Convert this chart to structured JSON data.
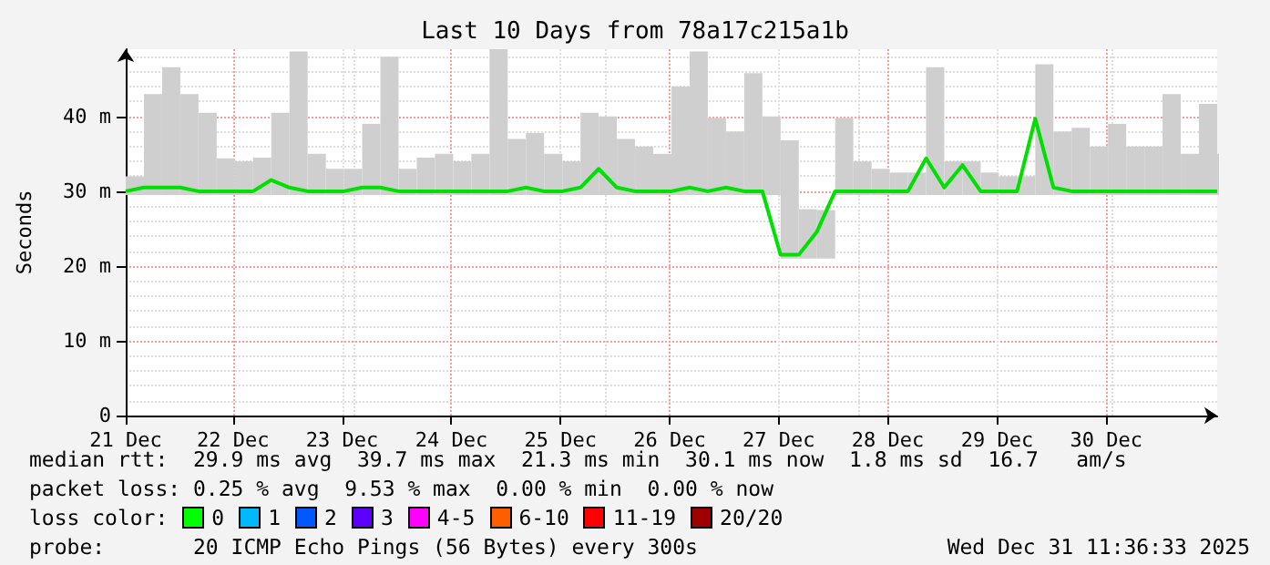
{
  "chart_data": {
    "type": "line",
    "title": "Last 10 Days from 78a17c215a1b",
    "ylabel": "Seconds",
    "x": [
      "2025-12-21T12:24",
      "2025-12-21T16:24",
      "2025-12-21T20:24",
      "2025-12-22T00:24",
      "2025-12-22T04:24",
      "2025-12-22T08:24",
      "2025-12-22T12:24",
      "2025-12-22T16:24",
      "2025-12-22T20:24",
      "2025-12-23T00:24",
      "2025-12-23T04:24",
      "2025-12-23T08:24",
      "2025-12-23T12:24",
      "2025-12-23T16:24",
      "2025-12-23T20:24",
      "2025-12-24T00:24",
      "2025-12-24T04:24",
      "2025-12-24T08:24",
      "2025-12-24T12:24",
      "2025-12-24T16:24",
      "2025-12-24T20:24",
      "2025-12-25T00:24",
      "2025-12-25T04:24",
      "2025-12-25T08:24",
      "2025-12-25T12:24",
      "2025-12-25T16:24",
      "2025-12-25T20:24",
      "2025-12-26T00:24",
      "2025-12-26T04:24",
      "2025-12-26T08:24",
      "2025-12-26T12:24",
      "2025-12-26T16:24",
      "2025-12-26T20:24",
      "2025-12-27T00:24",
      "2025-12-27T04:24",
      "2025-12-27T08:24",
      "2025-12-27T12:24",
      "2025-12-27T16:24",
      "2025-12-27T20:24",
      "2025-12-28T00:24",
      "2025-12-28T04:24",
      "2025-12-28T08:24",
      "2025-12-28T12:24",
      "2025-12-28T16:24",
      "2025-12-28T20:24",
      "2025-12-29T00:24",
      "2025-12-29T04:24",
      "2025-12-29T08:24",
      "2025-12-29T12:24",
      "2025-12-29T16:24",
      "2025-12-29T20:24",
      "2025-12-30T00:24",
      "2025-12-30T04:24",
      "2025-12-30T08:24",
      "2025-12-30T12:24",
      "2025-12-30T16:24",
      "2025-12-30T20:24",
      "2025-12-31T00:24",
      "2025-12-31T04:24",
      "2025-12-31T08:24",
      "2025-12-31T12:24"
    ],
    "series": [
      {
        "color": "#00e000",
        "values": [
          30,
          30.5,
          30.5,
          30.5,
          30,
          30,
          30,
          30,
          31.5,
          30.5,
          30,
          30,
          30,
          30.5,
          30.5,
          30,
          30,
          30,
          30,
          30,
          30,
          30,
          30.5,
          30,
          30,
          30.5,
          33,
          30.5,
          30,
          30,
          30,
          30.5,
          30,
          30.5,
          30,
          30,
          21.5,
          21.5,
          24.6,
          30,
          30,
          30,
          30,
          30,
          34.4,
          30.5,
          33.5,
          30,
          30,
          30,
          39.7,
          30.5,
          30,
          30,
          30,
          30,
          30,
          30,
          30,
          30,
          30
        ],
        "lower": [
          29.5,
          29.5,
          29.5,
          29.5,
          29.5,
          29.5,
          29.5,
          29.5,
          29.5,
          29.5,
          29.5,
          29.5,
          29.5,
          29.5,
          29.5,
          29.5,
          29.5,
          29.5,
          29.5,
          29.5,
          29.5,
          29.5,
          29.5,
          29.5,
          29.5,
          29.5,
          29.5,
          29.5,
          29.5,
          29.5,
          29.5,
          29.5,
          29.5,
          29.5,
          29.5,
          29.5,
          21,
          21,
          21,
          29.5,
          29.5,
          29.5,
          29.5,
          29.5,
          29.5,
          29.5,
          29.5,
          29.5,
          29.5,
          29.5,
          29.5,
          29.5,
          29.5,
          29.5,
          29.5,
          29.5,
          29.5,
          29.5,
          29.5,
          29.5,
          29.5
        ],
        "upper": [
          32,
          43,
          46.6,
          43,
          40.5,
          34.4,
          34,
          34.5,
          40.5,
          48.7,
          35,
          33,
          33,
          39,
          48,
          33,
          34.5,
          35,
          34,
          35,
          49,
          37,
          37.8,
          35,
          34,
          40.5,
          40,
          37,
          36,
          35,
          44,
          48.7,
          39.8,
          38,
          45.8,
          40,
          36.8,
          27.6,
          27.5,
          39.8,
          34,
          33,
          32.5,
          32.5,
          46.6,
          34,
          34,
          32.5,
          32,
          32,
          47,
          38,
          38.5,
          36,
          39,
          36,
          36,
          43,
          35,
          41.7,
          35
        ]
      }
    ],
    "xlim": [
      "2025-12-21T12:24",
      "2025-12-31T12:24"
    ],
    "xticks": [
      {
        "value": "2025-12-21T12:24",
        "label": "21 Dec"
      },
      {
        "value": "2025-12-22T12:00",
        "label": "22 Dec"
      },
      {
        "value": "2025-12-23T12:00",
        "label": "23 Dec"
      },
      {
        "value": "2025-12-24T12:00",
        "label": "24 Dec"
      },
      {
        "value": "2025-12-25T12:00",
        "label": "25 Dec"
      },
      {
        "value": "2025-12-26T12:00",
        "label": "26 Dec"
      },
      {
        "value": "2025-12-27T12:00",
        "label": "27 Dec"
      },
      {
        "value": "2025-12-28T12:00",
        "label": "28 Dec"
      },
      {
        "value": "2025-12-29T12:00",
        "label": "29 Dec"
      },
      {
        "value": "2025-12-30T12:00",
        "label": "30 Dec"
      }
    ],
    "ylim": [
      0,
      49
    ],
    "yticks": [
      0,
      {
        "value": 10,
        "label": "10 m"
      },
      {
        "value": 20,
        "label": "20 m"
      },
      {
        "value": 30,
        "label": "30 m"
      },
      {
        "value": 40,
        "label": "40 m"
      }
    ],
    "grid": true,
    "annotations": [
      "median rtt:  29.9 ms avg  39.7 ms max  21.3 ms min  30.1 ms now  1.8 ms sd  16.7   am/s",
      "packet loss: 0.25 % avg  9.53 % max  0.00 % min  0.00 % now",
      "loss color:",
      "0",
      "1",
      "2",
      "3",
      "4-5",
      "6-10",
      "11-19",
      "20/20",
      "probe:       20 ICMP Echo Pings (56 Bytes) every 300s",
      "Wed Dec 31 11:36:33 2025"
    ]
  }
}
